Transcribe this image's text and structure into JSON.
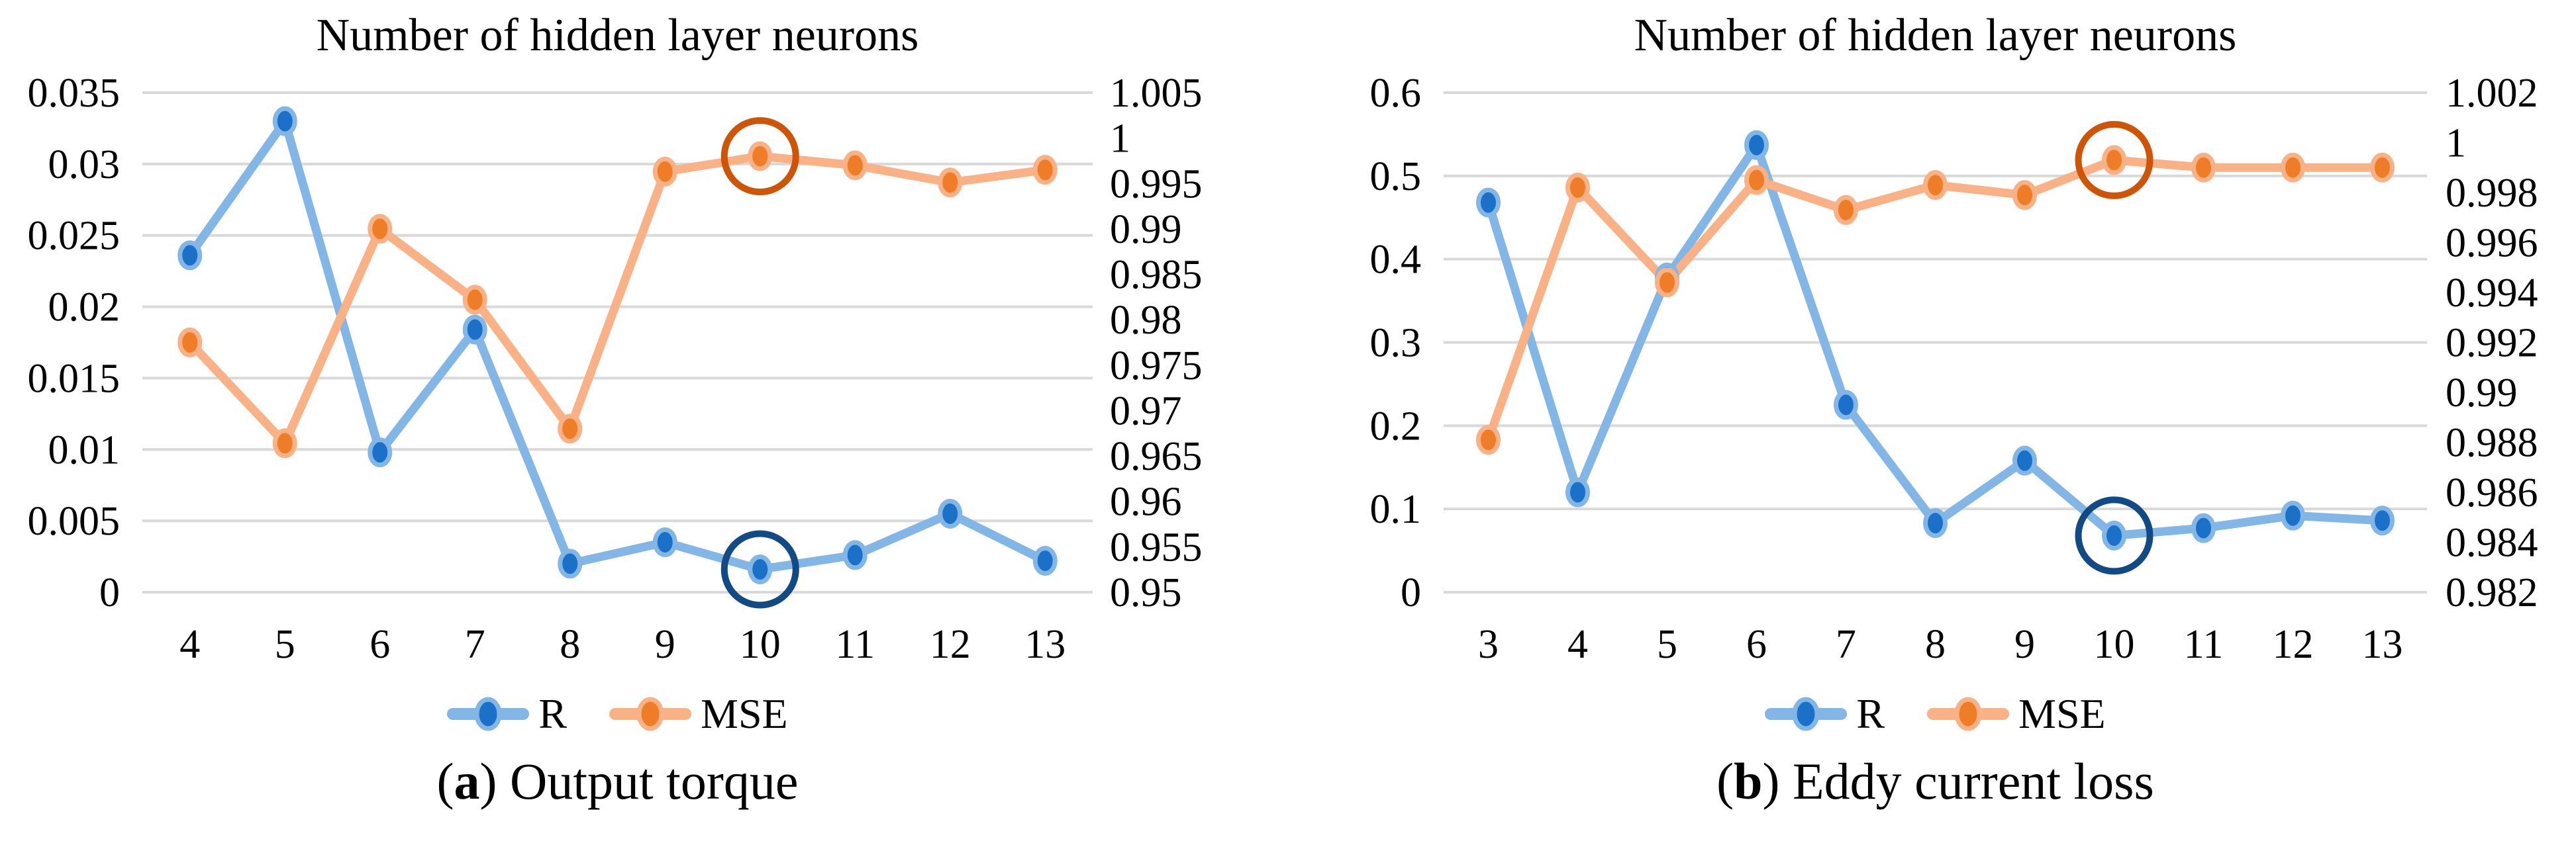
{
  "colors": {
    "r_line": "#82B6E6",
    "r_marker": "#1B70C8",
    "r_circle": "#114A85",
    "mse_line": "#F9B185",
    "mse_marker": "#EF7D28",
    "mse_circle": "#CE5407",
    "gridline": "#D9D9D9",
    "text": "#000000",
    "background": "#FFFFFF"
  },
  "legend": {
    "r_label": "R",
    "mse_label": "MSE"
  },
  "chart_data": [
    {
      "type": "line",
      "title": "Number of hidden layer neurons",
      "caption": {
        "open": "(",
        "letter": "a",
        "close": ")",
        "text": " Output torque"
      },
      "x": [
        4,
        5,
        6,
        7,
        8,
        9,
        10,
        11,
        12,
        13
      ],
      "grid": true,
      "legend_position": "bottom",
      "left_axis": {
        "min": 0,
        "max": 0.035,
        "step": 0.005,
        "labels": [
          "0.035",
          "0.03",
          "0.025",
          "0.02",
          "0.015",
          "0.01",
          "0.005",
          "0"
        ]
      },
      "right_axis": {
        "min": 0.95,
        "max": 1.005,
        "step": 0.005,
        "labels": [
          "1.005",
          "1",
          "0.995",
          "0.99",
          "0.985",
          "0.98",
          "0.975",
          "0.97",
          "0.965",
          "0.96",
          "0.955",
          "0.95"
        ]
      },
      "series": [
        {
          "name": "R",
          "axis": "left",
          "color_role": "r",
          "values": [
            0.0236,
            0.033,
            0.0098,
            0.0184,
            0.002,
            0.0035,
            0.0016,
            0.0026,
            0.0055,
            0.0022
          ],
          "circled_x": 10
        },
        {
          "name": "MSE",
          "axis": "right",
          "color_role": "mse",
          "values": [
            0.9775,
            0.9664,
            0.99,
            0.9822,
            0.968,
            0.9963,
            0.998,
            0.997,
            0.9951,
            0.9965
          ],
          "circled_x": 10
        }
      ]
    },
    {
      "type": "line",
      "title": "Number of hidden layer neurons",
      "caption": {
        "open": "(",
        "letter": "b",
        "close": ")",
        "text": " Eddy current loss"
      },
      "x": [
        3,
        4,
        5,
        6,
        7,
        8,
        9,
        10,
        11,
        12,
        13
      ],
      "grid": true,
      "legend_position": "bottom",
      "left_axis": {
        "min": 0,
        "max": 0.6,
        "step": 0.1,
        "labels": [
          "0.6",
          "0.5",
          "0.4",
          "0.3",
          "0.2",
          "0.1",
          "0"
        ]
      },
      "right_axis": {
        "min": 0.982,
        "max": 1.002,
        "step": 0.002,
        "labels": [
          "1.002",
          "1",
          "0.998",
          "0.996",
          "0.994",
          "0.992",
          "0.99",
          "0.988",
          "0.986",
          "0.984",
          "0.982"
        ]
      },
      "series": [
        {
          "name": "R",
          "axis": "left",
          "color_role": "r",
          "values": [
            0.468,
            0.12,
            0.378,
            0.537,
            0.225,
            0.083,
            0.158,
            0.068,
            0.077,
            0.092,
            0.086
          ],
          "circled_x": 10
        },
        {
          "name": "MSE",
          "axis": "right",
          "color_role": "mse",
          "values": [
            0.9881,
            0.9982,
            0.9944,
            0.9985,
            0.9973,
            0.9983,
            0.9979,
            0.9993,
            0.999,
            0.999,
            0.999
          ],
          "circled_x": 10
        }
      ]
    }
  ]
}
